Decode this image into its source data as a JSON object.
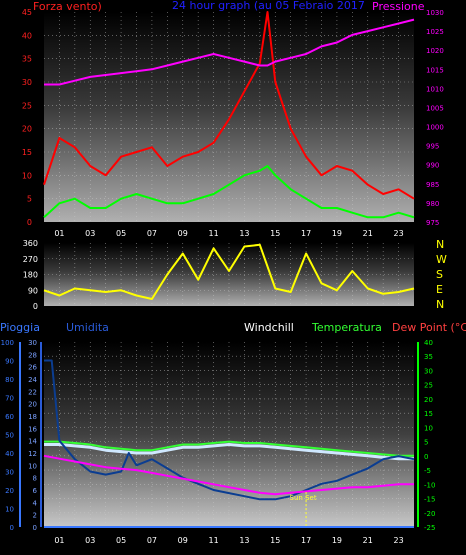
{
  "header": {
    "left": "Forza vento)",
    "center": "24 hour graph (au  05 Febraio 2017",
    "right": "Pressione"
  },
  "colors": {
    "wind_left": "#ff2020",
    "title": "#2020ff",
    "pressure": "#ff00ff",
    "gust": "#ff0000",
    "wind_avg": "#00ff00",
    "direction": "#ffff00",
    "rain": "#3a78ff",
    "humidity_label": "#2a5bd8",
    "humidity": "#0b3d91",
    "windchill": "#cfe8ff",
    "windchill_label": "#ffffff",
    "temperature": "#33ff33",
    "dewpoint": "#ff00ff",
    "dewpoint_label": "#ff4040",
    "right_scale": "#00ff00",
    "sunset": "#ffff33"
  },
  "chart_data": [
    {
      "type": "line",
      "title": "24 hour graph (au  05 Febraio 2017",
      "x_ticks": [
        "01",
        "03",
        "05",
        "07",
        "09",
        "11",
        "13",
        "15",
        "17",
        "19",
        "21",
        "23"
      ],
      "x_range": [
        0,
        24
      ],
      "left_axis": {
        "label": "Forza vento)",
        "ylim": [
          0,
          45
        ],
        "ticks": [
          0,
          5,
          10,
          15,
          20,
          25,
          30,
          35,
          40,
          45
        ]
      },
      "right_axis": {
        "label": "Pressione",
        "ylim": [
          975,
          1030
        ],
        "ticks": [
          975,
          980,
          985,
          990,
          995,
          1000,
          1005,
          1010,
          1015,
          1020,
          1025,
          1030
        ]
      },
      "series": [
        {
          "axis": "right",
          "x": [
            0,
            1,
            2,
            3,
            4,
            5,
            6,
            7,
            8,
            9,
            10,
            11,
            12,
            13,
            14,
            14.5,
            15,
            16,
            17,
            18,
            19,
            20,
            21,
            22,
            23,
            24
          ],
          "y": [
            1011,
            1011,
            1012,
            1013,
            1013.5,
            1014,
            1014.5,
            1015,
            1016,
            1017,
            1018,
            1019,
            1018,
            1017,
            1016,
            1016,
            1017,
            1018,
            1019,
            1021,
            1022,
            1024,
            1025,
            1026,
            1027,
            1028
          ]
        },
        {
          "axis": "left",
          "x": [
            0,
            1,
            2,
            3,
            4,
            5,
            6,
            7,
            8,
            9,
            10,
            11,
            12,
            13,
            14,
            14.5,
            15,
            16,
            17,
            18,
            19,
            20,
            21,
            22,
            23,
            24
          ],
          "y": [
            1,
            4,
            5,
            3,
            3,
            5,
            6,
            5,
            4,
            4,
            5,
            6,
            8,
            10,
            11,
            12,
            10,
            7,
            5,
            3,
            3,
            2,
            1,
            1,
            2,
            1
          ]
        },
        {
          "axis": "left",
          "x": [
            0,
            1,
            2,
            3,
            4,
            5,
            6,
            7,
            8,
            9,
            10,
            11,
            12,
            13,
            14,
            14.5,
            15,
            16,
            17,
            18,
            19,
            20,
            21,
            22,
            23,
            24
          ],
          "y": [
            8,
            18,
            16,
            12,
            10,
            14,
            15,
            16,
            12,
            14,
            15,
            17,
            22,
            28,
            34,
            45,
            30,
            20,
            14,
            10,
            12,
            11,
            8,
            6,
            7,
            5
          ]
        }
      ]
    },
    {
      "type": "line",
      "ylim": [
        0,
        360
      ],
      "y_ticks": [
        0,
        90,
        180,
        270,
        360
      ],
      "compass": [
        "N",
        "W",
        "S",
        "E",
        "N"
      ],
      "series": [
        {
          "x": [
            0,
            1,
            2,
            3,
            4,
            5,
            6,
            7,
            8,
            9,
            10,
            11,
            12,
            13,
            14,
            15,
            16,
            17,
            18,
            19,
            20,
            21,
            22,
            23,
            24
          ],
          "y": [
            90,
            60,
            100,
            90,
            80,
            90,
            60,
            40,
            180,
            300,
            150,
            330,
            200,
            340,
            350,
            100,
            80,
            300,
            130,
            90,
            200,
            100,
            70,
            80,
            100
          ]
        }
      ]
    },
    {
      "type": "line",
      "x_ticks": [
        "01",
        "03",
        "05",
        "07",
        "09",
        "11",
        "13",
        "15",
        "17",
        "19",
        "21",
        "23"
      ],
      "x_range": [
        0,
        24
      ],
      "header_labels": {
        "rain": "Pioggia",
        "humidity": "Umidita",
        "windchill": "Windchill",
        "temperature": "Temperatura",
        "dewpoint": "Dew Point (°C)"
      },
      "rain_axis": {
        "ylim": [
          0,
          100
        ],
        "ticks": [
          0,
          10,
          20,
          30,
          40,
          50,
          60,
          70,
          80,
          90,
          100
        ]
      },
      "humidity_axis": {
        "ylim": [
          0,
          30
        ],
        "ticks": [
          0,
          2,
          4,
          6,
          8,
          10,
          12,
          14,
          16,
          18,
          20,
          22,
          24,
          26,
          28,
          30
        ]
      },
      "temp_axis": {
        "ylim": [
          -25,
          40
        ],
        "ticks": [
          -25,
          -20,
          -15,
          -10,
          -5,
          0,
          5,
          10,
          15,
          20,
          25,
          30,
          35,
          40
        ]
      },
      "sunset_hour": 17,
      "sunset_label": "Sun Set",
      "series": [
        {
          "axis": "temp",
          "x": [
            0,
            1,
            2,
            3,
            4,
            5,
            6,
            7,
            8,
            9,
            10,
            11,
            12,
            13,
            14,
            15,
            16,
            17,
            18,
            19,
            20,
            21,
            22,
            23,
            24
          ],
          "y": [
            5,
            5,
            4.5,
            4,
            3,
            2.5,
            2,
            2,
            3,
            4,
            4,
            4.5,
            5,
            4.5,
            4.5,
            4,
            3.5,
            3,
            2.5,
            2,
            1.5,
            1,
            0.5,
            0,
            0
          ]
        },
        {
          "axis": "temp",
          "x": [
            0,
            1,
            2,
            3,
            4,
            5,
            6,
            7,
            8,
            9,
            10,
            11,
            12,
            13,
            14,
            15,
            16,
            17,
            18,
            19,
            20,
            21,
            22,
            23,
            24
          ],
          "y": [
            4,
            4,
            3.5,
            3,
            2,
            1.5,
            1,
            1,
            2,
            3,
            3,
            3.5,
            4,
            3.5,
            3.5,
            3,
            2.5,
            2,
            1.5,
            1,
            0.5,
            0,
            -0.5,
            -1,
            -1
          ]
        },
        {
          "axis": "humidity",
          "x": [
            0,
            0.5,
            1,
            2,
            3,
            4,
            5,
            5.5,
            6,
            7,
            8,
            9,
            10,
            11,
            12,
            13,
            14,
            15,
            16,
            17,
            18,
            19,
            20,
            21,
            22,
            23,
            24
          ],
          "y": [
            27,
            27,
            14,
            11,
            9,
            8.5,
            9,
            12,
            10,
            11,
            9.5,
            8,
            7,
            6,
            5.5,
            5,
            4.5,
            4.5,
            5,
            6,
            7,
            7.5,
            8.5,
            9.5,
            11,
            11.5,
            11
          ]
        },
        {
          "axis": "temp",
          "x": [
            0,
            1,
            2,
            3,
            4,
            5,
            6,
            7,
            8,
            9,
            10,
            11,
            12,
            13,
            14,
            15,
            16,
            17,
            18,
            19,
            20,
            21,
            22,
            23,
            24
          ],
          "y": [
            0,
            -1,
            -2,
            -3,
            -4,
            -4.5,
            -5,
            -6,
            -7,
            -8,
            -9,
            -10,
            -11,
            -12,
            -13,
            -13.5,
            -13,
            -12.5,
            -12,
            -11.5,
            -11,
            -11,
            -10.5,
            -10,
            -10
          ]
        },
        {
          "axis": "rain",
          "x": [
            0,
            24
          ],
          "y": [
            0,
            0
          ]
        }
      ]
    }
  ]
}
